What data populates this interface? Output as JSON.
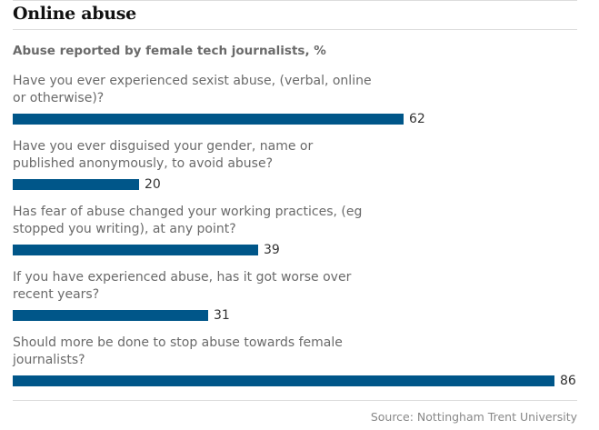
{
  "colors": {
    "bar": "#005689",
    "title": "#111111",
    "label": "#6a6a6a",
    "rule": "#dcdcdc"
  },
  "chart_data": {
    "type": "bar",
    "orientation": "horizontal",
    "title": "Online abuse",
    "subtitle": "Abuse reported by female tech journalists, %",
    "categories": [
      "Have you ever experienced sexist abuse, (verbal, online or otherwise)?",
      "Have you ever disguised your gender, name or published anonymously, to avoid abuse?",
      "Has fear of abuse changed your working practices, (eg stopped you writing), at any point?",
      "If you have experienced abuse, has it got worse over recent years?",
      "Should more be done to stop abuse towards female journalists?"
    ],
    "values": [
      62,
      20,
      39,
      31,
      86
    ],
    "xlim": [
      0,
      86
    ],
    "grid": false,
    "legend": "none",
    "source": "Source: Nottingham Trent University"
  }
}
